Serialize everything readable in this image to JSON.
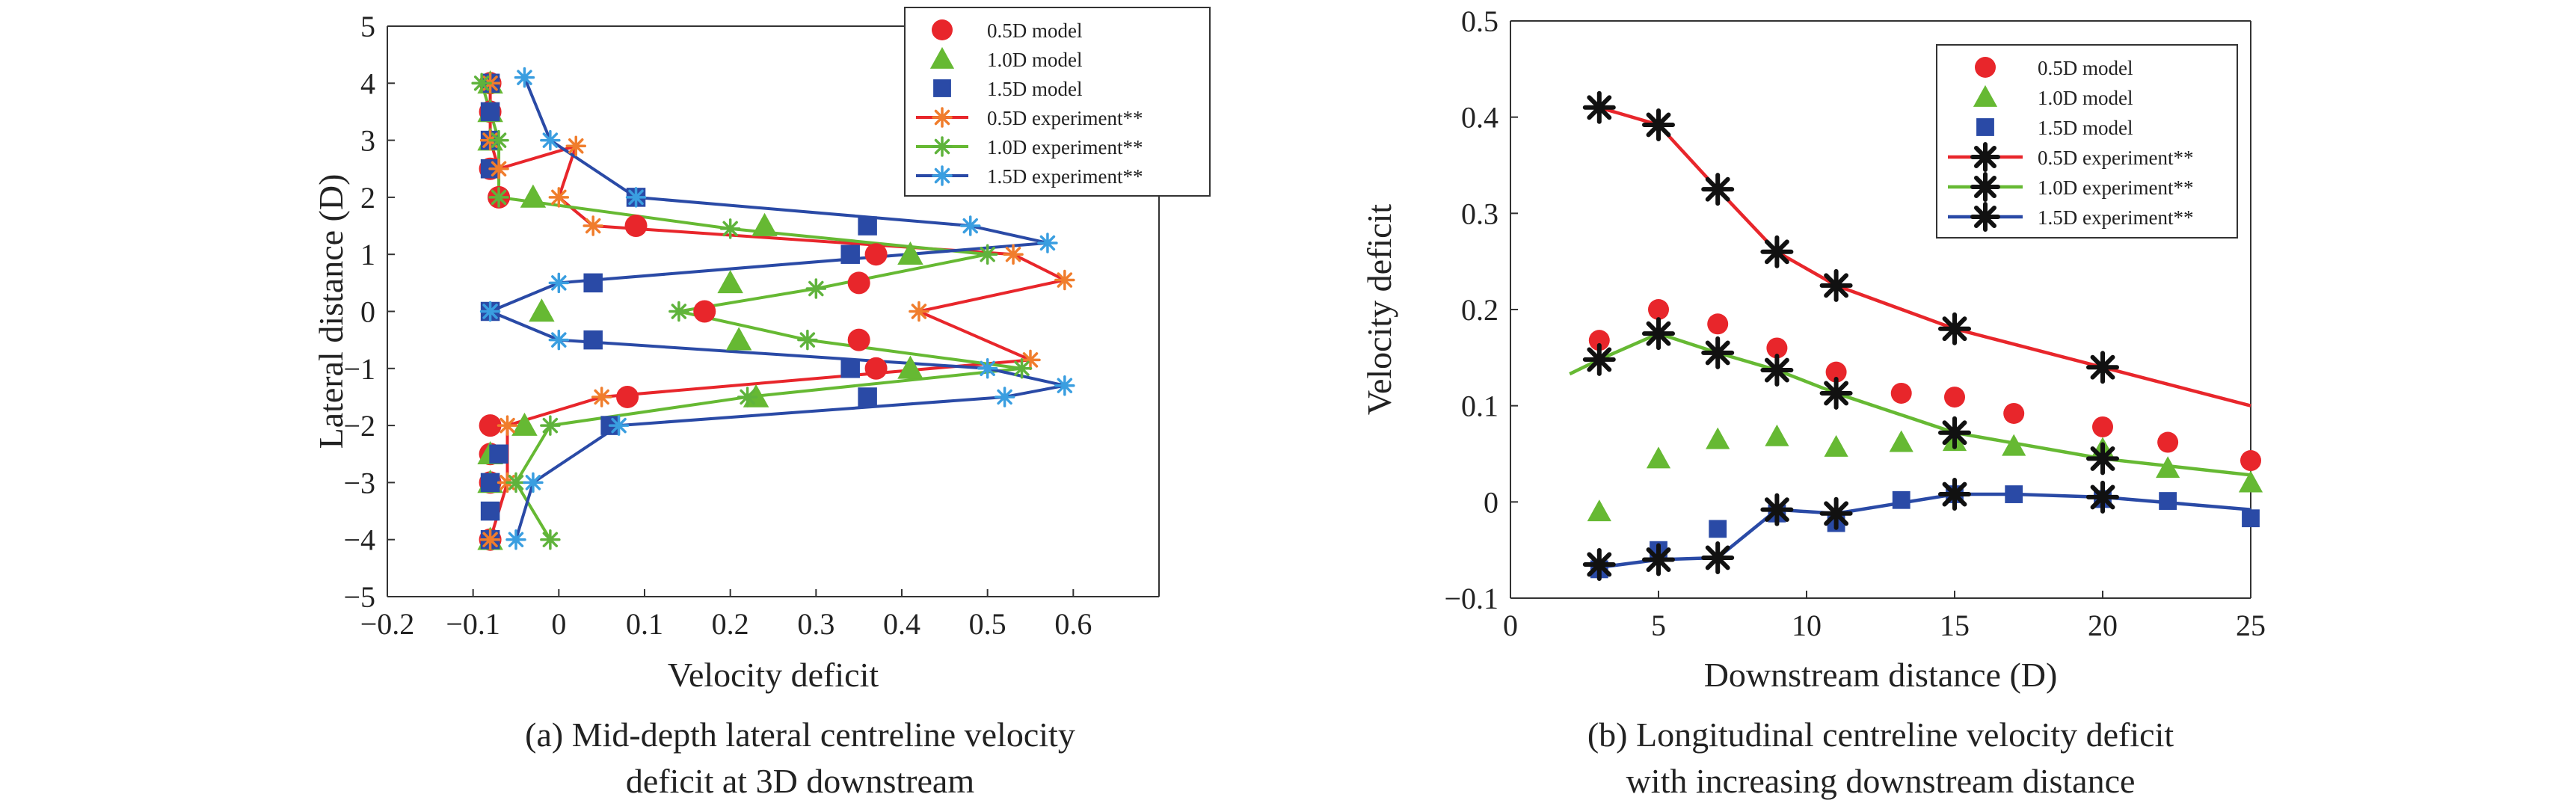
{
  "colors": {
    "red": "#e8262b",
    "green": "#66b933",
    "blue": "#2a4aa6",
    "orange": "#f07d2c",
    "lightgreen": "#5fb33c",
    "lightblue": "#3a9ee0",
    "black": "#111111"
  },
  "chart_data": [
    {
      "type": "line",
      "caption_line1": "(a) Mid-depth lateral centreline velocity",
      "caption_line2": "deficit at 3D downstream",
      "xlabel": "Velocity deficit",
      "ylabel": "Lateral distance (D)",
      "xlim": [
        -0.2,
        0.7
      ],
      "ylim": [
        -5,
        5
      ],
      "xticks": [
        -0.2,
        -0.1,
        0,
        0.1,
        0.2,
        0.3,
        0.4,
        0.5,
        0.6
      ],
      "xtick_labels": [
        "−0.2",
        "−0.1",
        "0",
        "0.1",
        "0.2",
        "0.3",
        "0.4",
        "0.5",
        "0.6"
      ],
      "yticks": [
        -5,
        -4,
        -3,
        -2,
        -1,
        0,
        1,
        2,
        3,
        4,
        5
      ],
      "ytick_labels": [
        "−5",
        "−4",
        "−3",
        "−2",
        "−1",
        "0",
        "1",
        "2",
        "3",
        "4",
        "5"
      ],
      "legend_position": "top-right",
      "series": [
        {
          "name": "0.5D model",
          "kind": "marker",
          "marker": "circle",
          "color": "#e8262b",
          "x": [
            -0.08,
            -0.08,
            -0.08,
            -0.07,
            0.09,
            0.37,
            0.35,
            0.17,
            0.35,
            0.37,
            0.08,
            -0.08,
            -0.08,
            -0.08,
            -0.08
          ],
          "y": [
            4,
            3.5,
            2.5,
            2,
            1.5,
            1,
            0.5,
            0,
            -0.5,
            -1,
            -1.5,
            -2,
            -2.5,
            -3,
            -4
          ]
        },
        {
          "name": "1.0D model",
          "kind": "marker",
          "marker": "triangle",
          "color": "#66b933",
          "x": [
            -0.08,
            -0.08,
            -0.08,
            -0.03,
            0.24,
            0.41,
            0.2,
            -0.02,
            0.21,
            0.41,
            0.23,
            -0.04,
            -0.08,
            -0.08,
            -0.08
          ],
          "y": [
            4,
            3.5,
            3,
            2,
            1.5,
            1,
            0.5,
            0,
            -0.5,
            -1,
            -1.5,
            -2,
            -2.5,
            -3,
            -4
          ]
        },
        {
          "name": "1.5D model",
          "kind": "marker",
          "marker": "square",
          "color": "#2a4aa6",
          "x": [
            -0.08,
            -0.08,
            -0.08,
            -0.08,
            0.09,
            0.36,
            0.34,
            0.04,
            -0.08,
            0.04,
            0.34,
            0.36,
            0.06,
            -0.07,
            -0.08,
            -0.08,
            -0.08
          ],
          "y": [
            4,
            3.5,
            3,
            2.5,
            2,
            1.5,
            1,
            0.5,
            0,
            -0.5,
            -1,
            -1.5,
            -2,
            -2.5,
            -3,
            -3.5,
            -4
          ]
        },
        {
          "name": "0.5D experiment**",
          "kind": "line-marker",
          "marker": "asterisk",
          "color": "#e8262b",
          "mcolor": "#f07d2c",
          "x": [
            -0.08,
            -0.08,
            -0.07,
            0.02,
            0.0,
            0.04,
            0.53,
            0.59,
            0.42,
            0.55,
            0.05,
            -0.06,
            -0.06,
            -0.08
          ],
          "y": [
            4,
            3,
            2.5,
            2.9,
            2,
            1.5,
            1,
            0.55,
            0,
            -0.85,
            -1.5,
            -2,
            -3,
            -4
          ]
        },
        {
          "name": "1.0D experiment**",
          "kind": "line-marker",
          "marker": "asterisk",
          "color": "#66b933",
          "mcolor": "#5fb33c",
          "x": [
            -0.09,
            -0.07,
            -0.07,
            0.2,
            0.5,
            0.3,
            0.14,
            0.29,
            0.54,
            0.22,
            -0.01,
            -0.05,
            -0.01
          ],
          "y": [
            4,
            3,
            2,
            1.45,
            1,
            0.4,
            0,
            -0.5,
            -1,
            -1.5,
            -2,
            -3,
            -4
          ]
        },
        {
          "name": "1.5D experiment**",
          "kind": "line-marker",
          "marker": "asterisk",
          "color": "#2a4aa6",
          "mcolor": "#3a9ee0",
          "x": [
            -0.04,
            -0.01,
            0.09,
            0.48,
            0.57,
            0.0,
            -0.08,
            0.0,
            0.5,
            0.59,
            0.52,
            0.07,
            -0.03,
            -0.05
          ],
          "y": [
            4.1,
            3,
            2,
            1.5,
            1.2,
            0.5,
            0,
            -0.5,
            -1,
            -1.3,
            -1.5,
            -2,
            -3,
            -4
          ]
        }
      ]
    },
    {
      "type": "line",
      "caption_line1": "(b) Longitudinal centreline velocity deficit",
      "caption_line2": "with increasing downstream distance",
      "xlabel": "Downstream distance (D)",
      "ylabel": "Velocity deficit",
      "xlim": [
        0,
        25
      ],
      "ylim": [
        -0.1,
        0.5
      ],
      "xticks": [
        0,
        5,
        10,
        15,
        20,
        25
      ],
      "xtick_labels": [
        "0",
        "5",
        "10",
        "15",
        "20",
        "25"
      ],
      "yticks": [
        -0.1,
        0,
        0.1,
        0.2,
        0.3,
        0.4,
        0.5
      ],
      "ytick_labels": [
        "−0.1",
        "0",
        "0.1",
        "0.2",
        "0.3",
        "0.4",
        "0.5"
      ],
      "legend_position": "top-right",
      "series": [
        {
          "name": "0.5D model",
          "kind": "marker",
          "marker": "circle",
          "color": "#e8262b",
          "x": [
            3,
            5,
            7,
            9,
            11,
            13.2,
            15,
            17,
            20,
            22.2,
            25
          ],
          "y": [
            0.168,
            0.2,
            0.185,
            0.16,
            0.135,
            0.113,
            0.109,
            0.092,
            0.078,
            0.062,
            0.043
          ]
        },
        {
          "name": "1.0D model",
          "kind": "marker",
          "marker": "triangle",
          "color": "#66b933",
          "x": [
            3,
            5,
            7,
            9,
            11,
            13.2,
            15,
            17,
            20,
            22.2,
            25
          ],
          "y": [
            -0.01,
            0.045,
            0.065,
            0.068,
            0.057,
            0.062,
            0.063,
            0.058,
            0.055,
            0.035,
            0.02
          ]
        },
        {
          "name": "1.5D model",
          "kind": "marker",
          "marker": "square",
          "color": "#2a4aa6",
          "x": [
            3,
            5,
            7,
            9,
            11,
            13.2,
            15,
            17,
            20,
            22.2,
            25
          ],
          "y": [
            -0.07,
            -0.05,
            -0.028,
            -0.012,
            -0.022,
            0.002,
            0.008,
            0.008,
            0.003,
            0.001,
            -0.017
          ]
        },
        {
          "name": "0.5D experiment**",
          "kind": "line-marker",
          "marker": "asterisk",
          "color": "#e8262b",
          "mcolor": "#111111",
          "line_x": [
            3,
            5,
            7,
            9,
            11,
            15,
            20,
            25
          ],
          "line_y": [
            0.41,
            0.392,
            0.325,
            0.26,
            0.225,
            0.18,
            0.14,
            0.1
          ],
          "x": [
            3,
            5,
            7,
            9,
            11,
            15,
            20
          ],
          "y": [
            0.41,
            0.392,
            0.325,
            0.26,
            0.225,
            0.18,
            0.14
          ]
        },
        {
          "name": "1.0D experiment**",
          "kind": "line-marker",
          "marker": "asterisk",
          "color": "#66b933",
          "mcolor": "#111111",
          "line_x": [
            2,
            3,
            5,
            7,
            9,
            11,
            15,
            20,
            25
          ],
          "line_y": [
            0.133,
            0.148,
            0.175,
            0.155,
            0.137,
            0.113,
            0.072,
            0.045,
            0.028
          ],
          "x": [
            3,
            5,
            7,
            9,
            11,
            15,
            20
          ],
          "y": [
            0.148,
            0.175,
            0.155,
            0.137,
            0.113,
            0.072,
            0.045
          ]
        },
        {
          "name": "1.5D experiment**",
          "kind": "line-marker",
          "marker": "asterisk",
          "color": "#2a4aa6",
          "mcolor": "#111111",
          "line_x": [
            3,
            5,
            7,
            9,
            11,
            15,
            17,
            20,
            25
          ],
          "line_y": [
            -0.068,
            -0.06,
            -0.058,
            -0.008,
            -0.012,
            0.008,
            0.008,
            0.005,
            -0.008
          ],
          "x": [
            3,
            5,
            7,
            9,
            11,
            15,
            20
          ],
          "y": [
            -0.065,
            -0.06,
            -0.058,
            -0.008,
            -0.012,
            0.008,
            0.005
          ]
        }
      ]
    }
  ]
}
